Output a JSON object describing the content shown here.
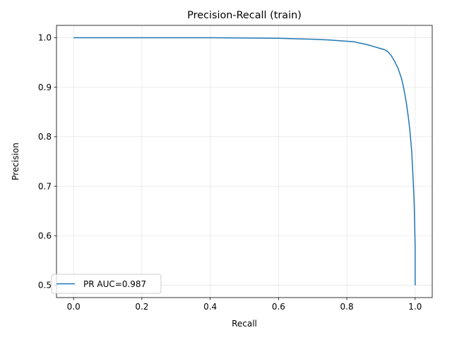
{
  "chart_data": {
    "type": "line",
    "title": "Precision-Recall (train)",
    "xlabel": "Recall",
    "ylabel": "Precision",
    "xlim": [
      -0.05,
      1.05
    ],
    "ylim": [
      0.475,
      1.025
    ],
    "grid": true,
    "legend_position": "lower-left",
    "x_ticks": [
      0.0,
      0.2,
      0.4,
      0.6,
      0.8,
      1.0
    ],
    "x_tick_labels": [
      "0.0",
      "0.2",
      "0.4",
      "0.6",
      "0.8",
      "1.0"
    ],
    "y_ticks": [
      0.5,
      0.6,
      0.7,
      0.8,
      0.9,
      1.0
    ],
    "y_tick_labels": [
      "0.5",
      "0.6",
      "0.7",
      "0.8",
      "0.9",
      "1.0"
    ],
    "series": [
      {
        "name": "PR AUC=0.987",
        "color": "#1f77b4",
        "x": [
          0.0,
          0.1,
          0.2,
          0.3,
          0.4,
          0.5,
          0.6,
          0.65,
          0.7,
          0.75,
          0.8,
          0.82,
          0.84,
          0.86,
          0.88,
          0.9,
          0.91,
          0.92,
          0.93,
          0.94,
          0.95,
          0.96,
          0.965,
          0.97,
          0.975,
          0.98,
          0.985,
          0.99,
          0.993,
          0.995,
          0.997,
          0.998,
          0.999,
          1.0,
          1.0
        ],
        "y": [
          1.0,
          1.0,
          1.0,
          1.0,
          1.0,
          0.9995,
          0.999,
          0.998,
          0.997,
          0.9955,
          0.993,
          0.992,
          0.989,
          0.986,
          0.982,
          0.978,
          0.976,
          0.972,
          0.964,
          0.952,
          0.938,
          0.918,
          0.903,
          0.885,
          0.865,
          0.84,
          0.81,
          0.77,
          0.73,
          0.7,
          0.67,
          0.64,
          0.61,
          0.58,
          0.5
        ]
      }
    ]
  }
}
